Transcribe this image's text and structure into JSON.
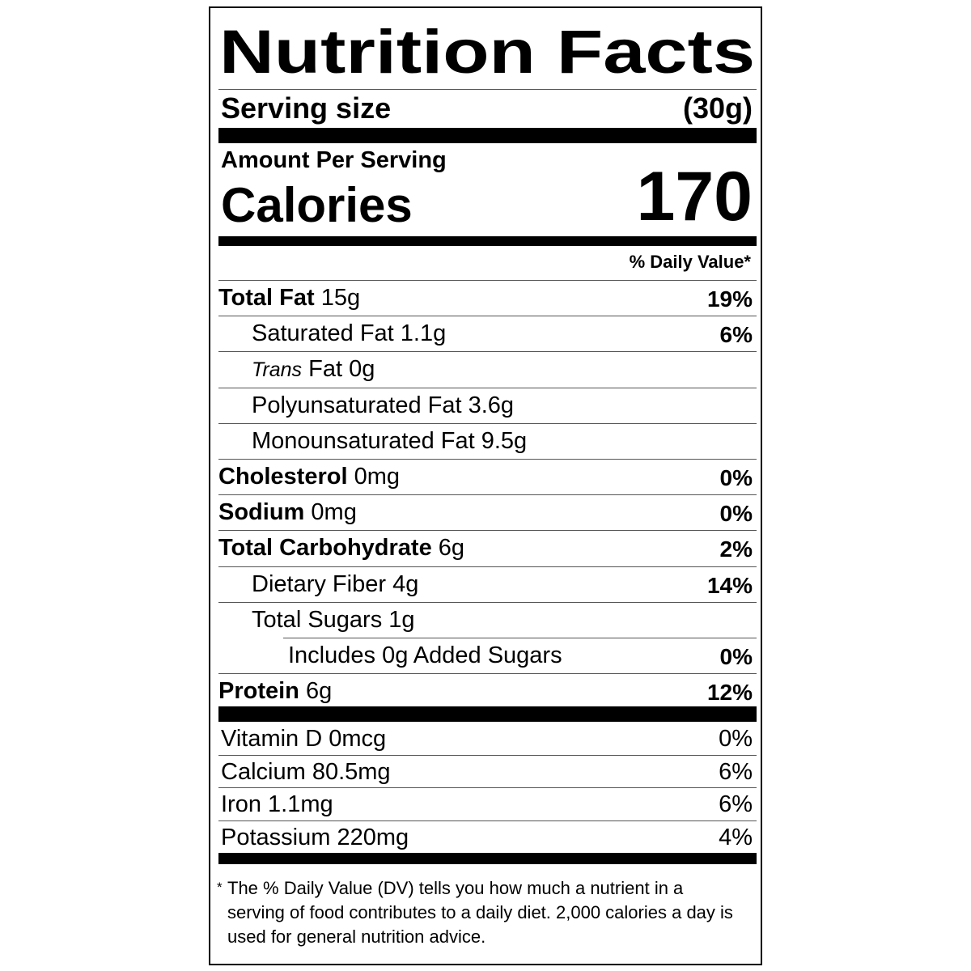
{
  "title": "Nutrition Facts",
  "serving": {
    "label": "Serving size",
    "value": "(30g)"
  },
  "amount_per_serving": "Amount Per Serving",
  "calories": {
    "label": "Calories",
    "value": 170
  },
  "daily_value_header": "% Daily Value*",
  "nutrients": [
    {
      "name": "Total Fat",
      "amount": "15g",
      "dv": "19%",
      "sub": [
        {
          "name": "Saturated Fat",
          "amount": "1.1g",
          "dv": "6%"
        },
        {
          "prefix": "Trans",
          "name": "Fat",
          "amount": "0g"
        },
        {
          "name": "Polyunsaturated Fat",
          "amount": "3.6g"
        },
        {
          "name": "Monounsaturated Fat",
          "amount": "9.5g"
        }
      ]
    },
    {
      "name": "Cholesterol",
      "amount": "0mg",
      "dv": "0%"
    },
    {
      "name": "Sodium",
      "amount": "0mg",
      "dv": "0%"
    },
    {
      "name": "Total Carbohydrate",
      "amount": "6g",
      "dv": "2%",
      "sub": [
        {
          "name": "Dietary Fiber",
          "amount": "4g",
          "dv": "14%"
        },
        {
          "name": "Total Sugars",
          "amount": "1g",
          "sub": [
            {
              "name": "Includes 0g Added Sugars",
              "dv": "0%"
            }
          ]
        }
      ]
    },
    {
      "name": "Protein",
      "amount": "6g",
      "dv": "12%"
    }
  ],
  "vitamins": [
    {
      "name": "Vitamin D",
      "amount": "0mcg",
      "dv": "0%"
    },
    {
      "name": "Calcium",
      "amount": "80.5mg",
      "dv": "6%"
    },
    {
      "name": "Iron",
      "amount": "1.1mg",
      "dv": "6%"
    },
    {
      "name": "Potassium",
      "amount": "220mg",
      "dv": "4%"
    }
  ],
  "footnote": {
    "mark": "*",
    "text": "The % Daily Value (DV) tells you how much a nutrient in a serving of food contributes to a daily diet. 2,000 calories a day is used for general nutrition advice."
  }
}
